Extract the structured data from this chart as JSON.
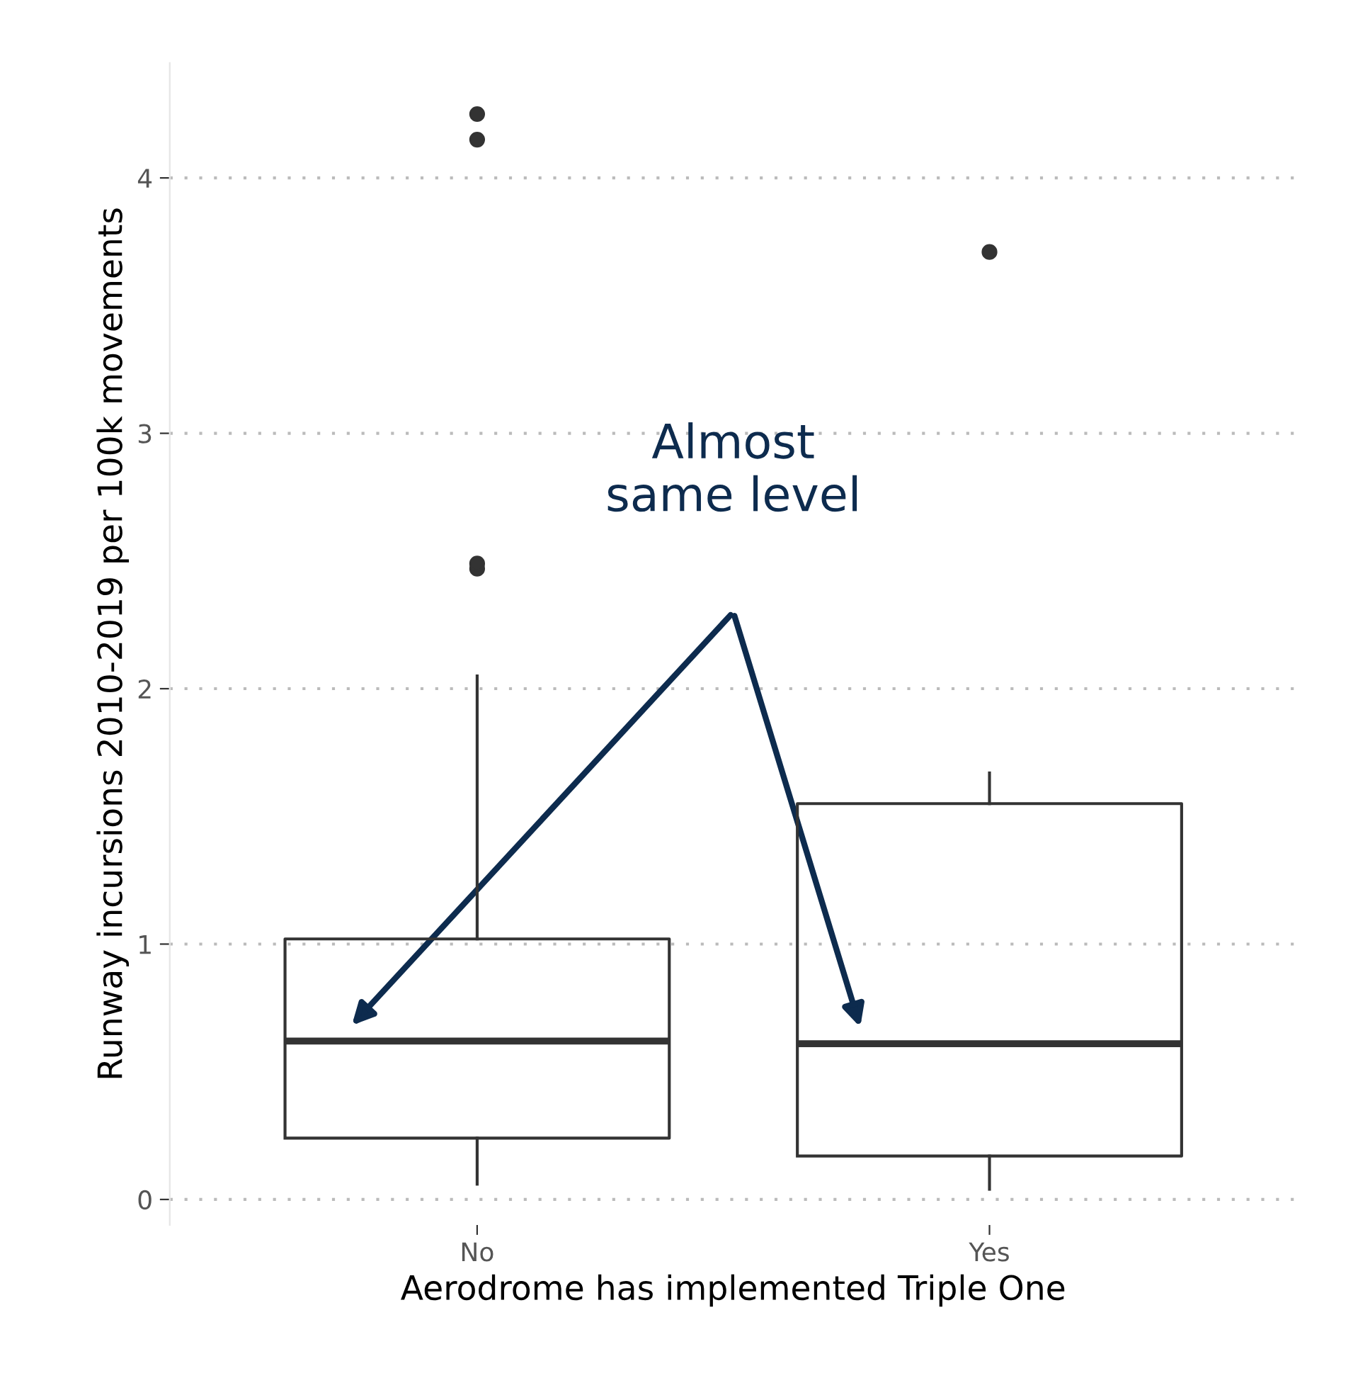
{
  "chart_data": {
    "type": "box",
    "xlabel": "Aerodrome has implemented Triple One",
    "ylabel": "Runway incursions 2010-2019 per 100k movements",
    "categories": [
      "No",
      "Yes"
    ],
    "boxes": [
      {
        "low": 0.06,
        "q1": 0.24,
        "median": 0.62,
        "q3": 1.02,
        "high": 2.05,
        "outliers": [
          2.47,
          2.49,
          4.15,
          4.25
        ]
      },
      {
        "low": 0.04,
        "q1": 0.17,
        "median": 0.61,
        "q3": 1.55,
        "high": 1.67,
        "outliers": [
          3.71
        ]
      }
    ],
    "ylim": [
      -0.1,
      4.45
    ],
    "yticks": [
      0,
      1,
      2,
      3,
      4
    ],
    "grid": "y",
    "color": "#333333",
    "annotations": [
      "Almost\nsame level"
    ]
  }
}
